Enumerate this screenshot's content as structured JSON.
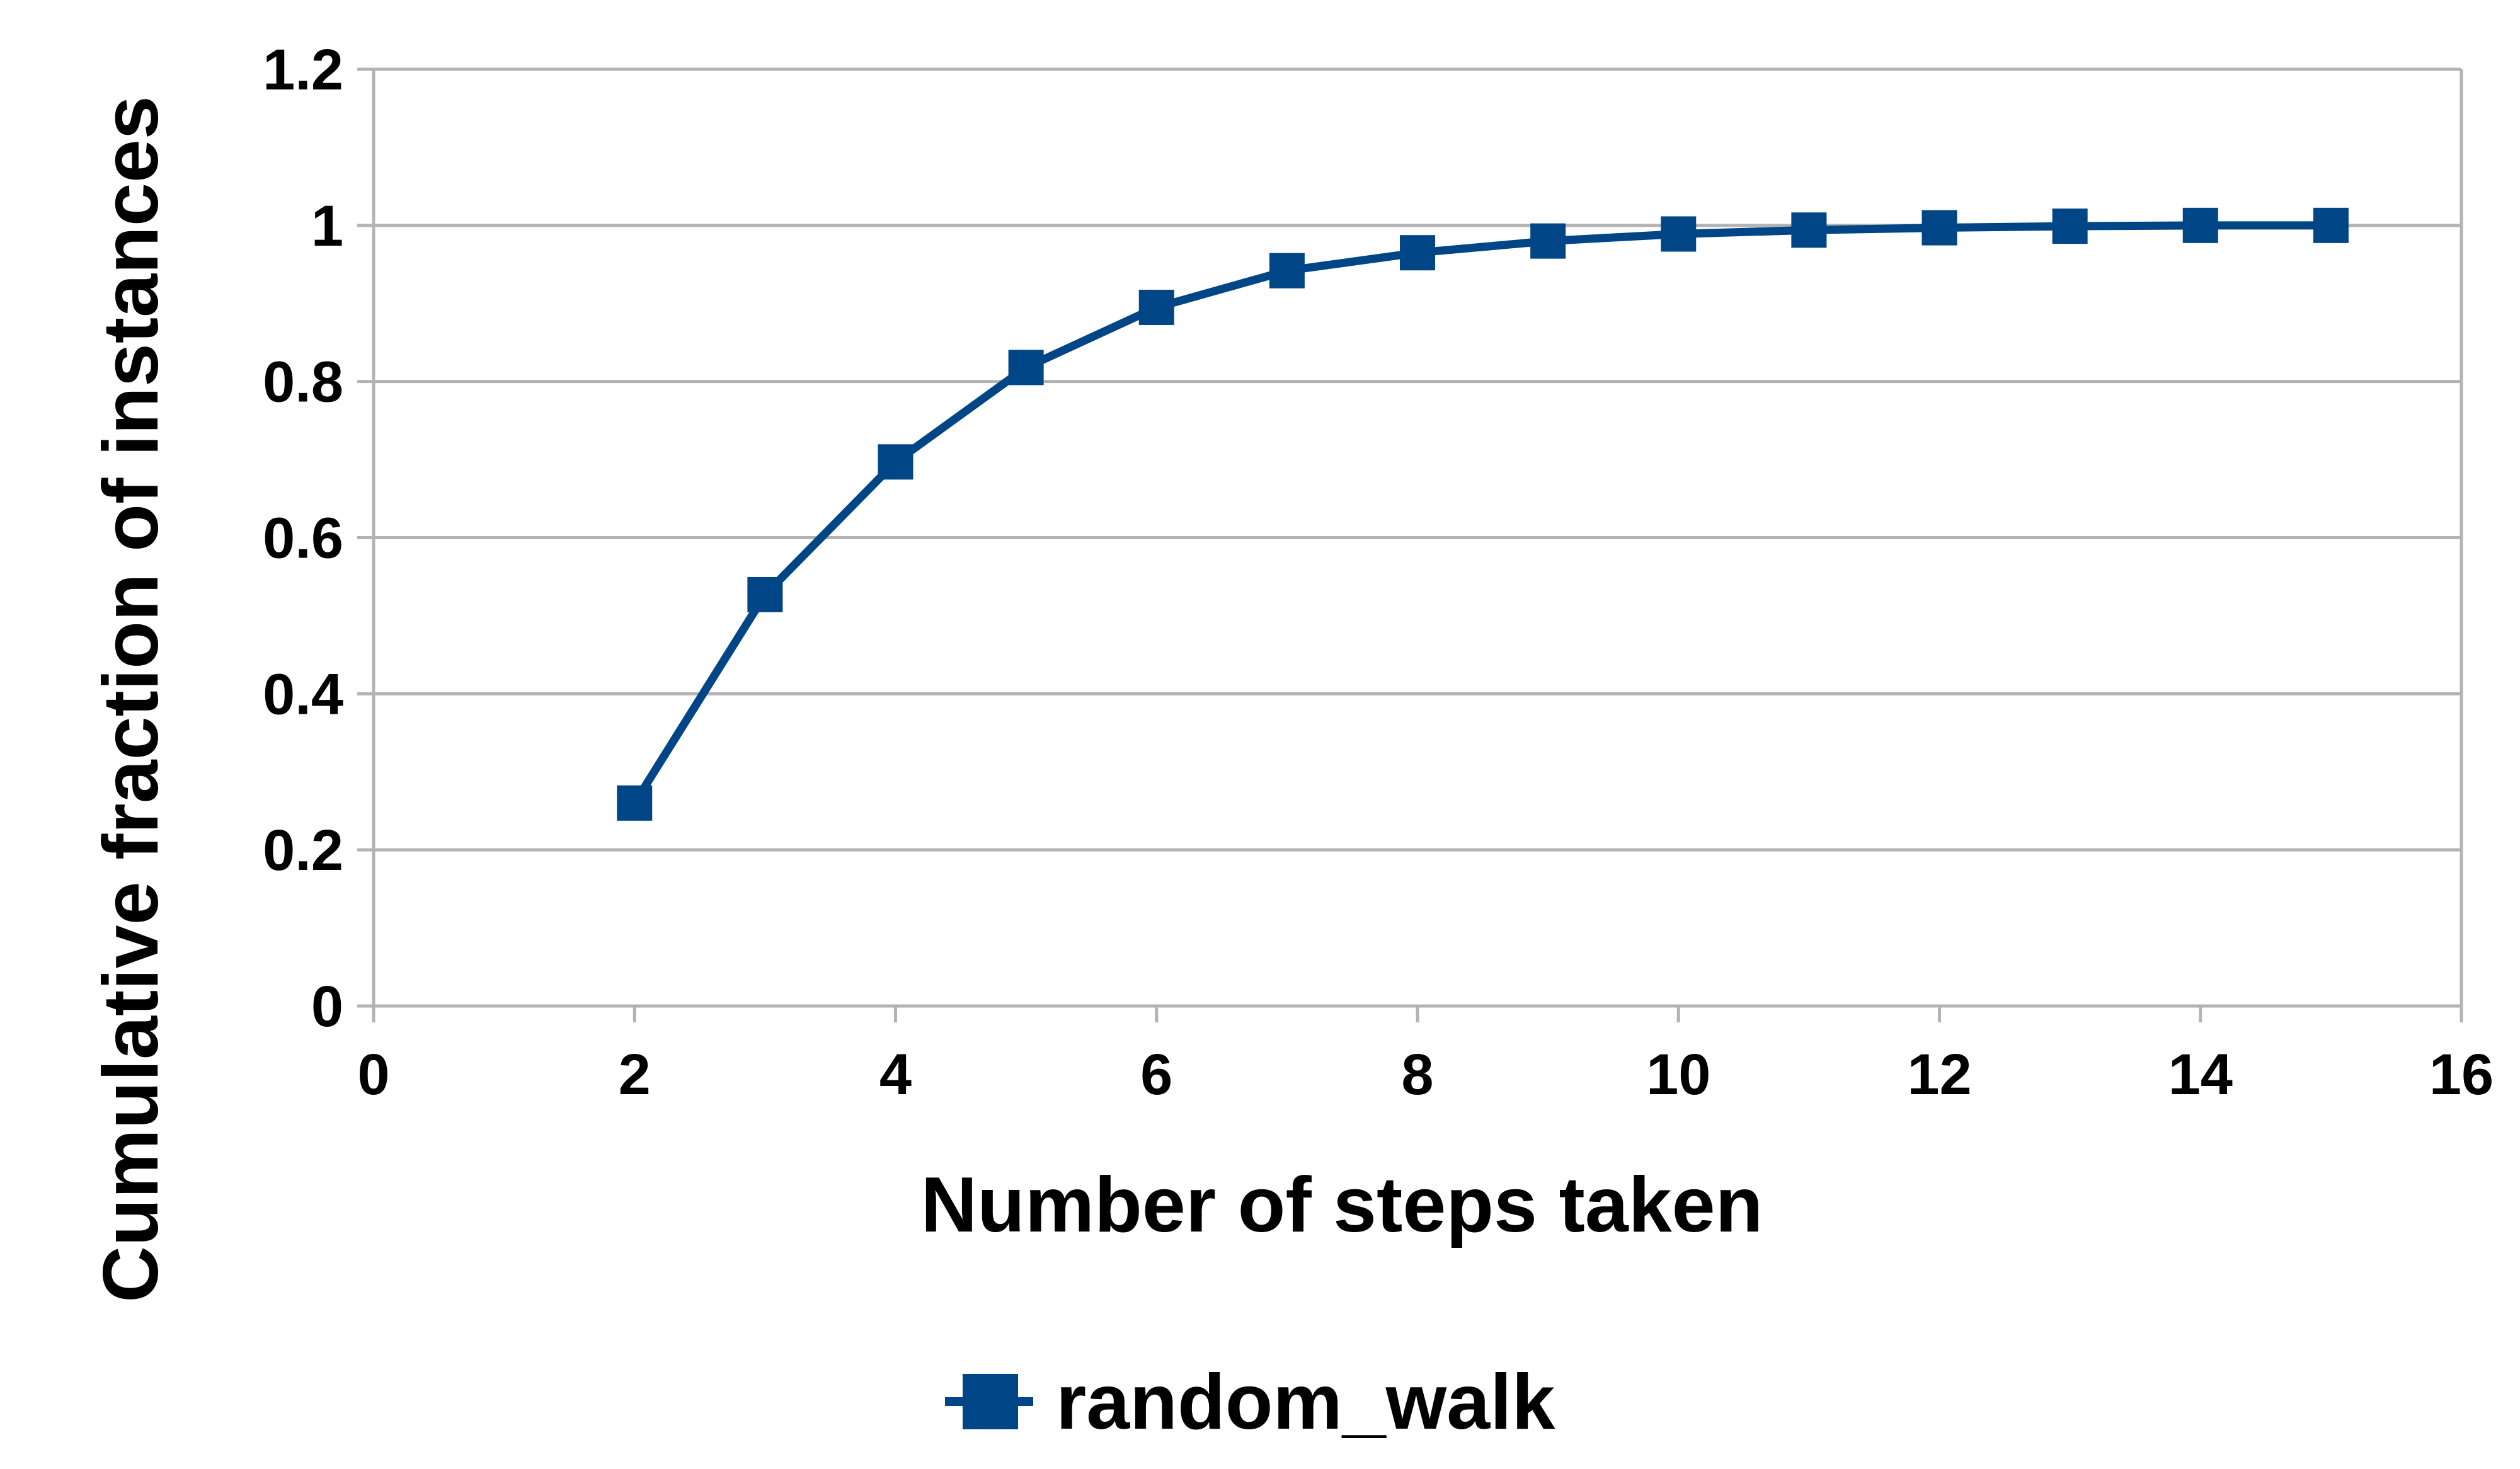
{
  "chart_data": {
    "type": "line",
    "title": "",
    "xlabel": "Number of steps taken",
    "ylabel": "Cumulative fraction of instances",
    "xlim": [
      0,
      16
    ],
    "ylim": [
      0,
      1.2
    ],
    "x_ticks": [
      0,
      2,
      4,
      6,
      8,
      10,
      12,
      14,
      16
    ],
    "y_ticks": [
      0,
      0.2,
      0.4,
      0.6,
      0.8,
      1,
      1.2
    ],
    "x_tick_labels": [
      "0",
      "2",
      "4",
      "6",
      "8",
      "10",
      "12",
      "14",
      "16"
    ],
    "y_tick_labels": [
      "0",
      "0.2",
      "0.4",
      "0.6",
      "0.8",
      "1",
      "1.2"
    ],
    "grid": "horizontal",
    "legend_position": "bottom-center",
    "colors": {
      "series": "#004586",
      "grid": "#b3b3b3",
      "axis": "#b3b3b3"
    },
    "series": [
      {
        "name": "random_walk",
        "marker": "square",
        "x": [
          2,
          3,
          4,
          5,
          6,
          7,
          8,
          9,
          10,
          11,
          12,
          13,
          14,
          15
        ],
        "y": [
          0.26,
          0.527,
          0.697,
          0.818,
          0.895,
          0.942,
          0.965,
          0.98,
          0.989,
          0.994,
          0.997,
          0.999,
          1.0,
          1.0
        ]
      }
    ]
  }
}
